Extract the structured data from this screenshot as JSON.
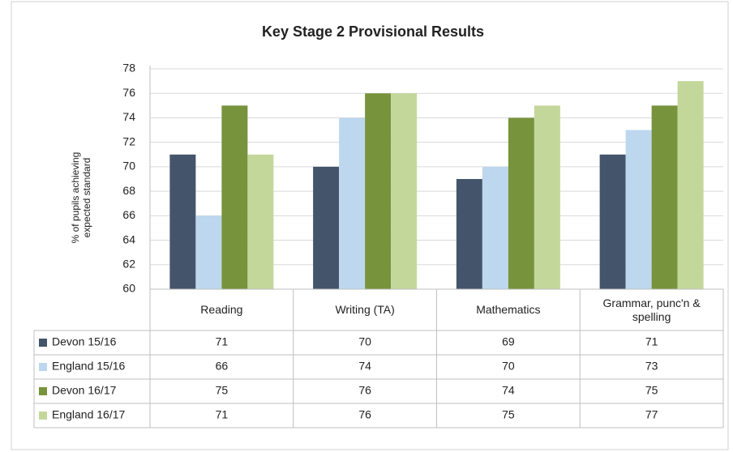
{
  "chart_data": {
    "type": "bar",
    "title": "Key Stage 2 Provisional Results",
    "y_label": "% of pupils achieving expected standard",
    "categories": [
      "Reading",
      "Writing (TA)",
      "Mathematics",
      "Grammar, punc'n & spelling"
    ],
    "series": [
      {
        "name": "Devon 15/16",
        "color": "#44546a",
        "values": [
          71,
          70,
          69,
          71
        ]
      },
      {
        "name": "England 15/16",
        "color": "#bdd7ee",
        "values": [
          66,
          74,
          70,
          73
        ]
      },
      {
        "name": "Devon 16/17",
        "color": "#77933c",
        "values": [
          75,
          76,
          74,
          75
        ]
      },
      {
        "name": "England 16/17",
        "color": "#c4d79b",
        "values": [
          71,
          76,
          75,
          77
        ]
      }
    ],
    "ylim": [
      60,
      78
    ],
    "yticks": [
      60,
      62,
      64,
      66,
      68,
      70,
      72,
      74,
      76,
      78
    ],
    "grid": true
  }
}
